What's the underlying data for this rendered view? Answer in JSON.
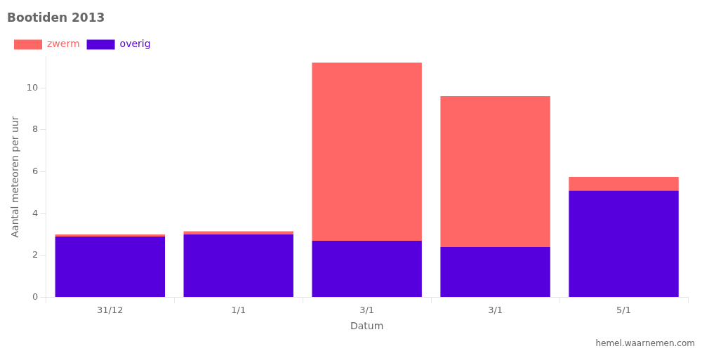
{
  "chart_data": {
    "type": "bar",
    "title": "Bootiden 2013",
    "x_label": "Datum",
    "y_label": "Aantal meteoren per uur",
    "categories": [
      "31/12",
      "1/1",
      "3/1",
      "3/1",
      "5/1"
    ],
    "series": [
      {
        "name": "overig",
        "color": "#5500dd",
        "values": [
          2.9,
          3.0,
          2.7,
          2.4,
          5.1
        ]
      },
      {
        "name": "zwerm",
        "color": "#ff6666",
        "values": [
          0.1,
          0.15,
          8.5,
          7.2,
          0.65
        ]
      }
    ],
    "stacked": true,
    "ylim": [
      0,
      11.5
    ],
    "yticks": [
      0,
      2,
      4,
      6,
      8,
      10
    ],
    "grid": false,
    "legend": "upper left",
    "annotations": [
      "hemel.waarnemen.com"
    ]
  }
}
